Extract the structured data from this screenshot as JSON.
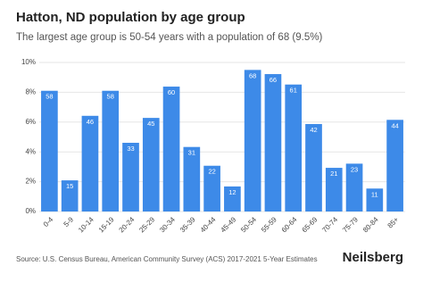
{
  "chart_data": {
    "type": "bar",
    "title": "Hatton, ND population by age group",
    "subtitle": "The largest age group is 50-54 years with a population of 68 (9.5%)",
    "categories": [
      "0-4",
      "5-9",
      "10-14",
      "15-19",
      "20-24",
      "25-29",
      "30-34",
      "35-39",
      "40-44",
      "45-49",
      "50-54",
      "55-59",
      "60-64",
      "65-69",
      "70-74",
      "75-79",
      "80-84",
      "85+"
    ],
    "values": [
      8.1,
      2.09,
      6.42,
      8.1,
      4.61,
      6.28,
      8.38,
      4.33,
      3.07,
      1.68,
      9.5,
      9.22,
      8.52,
      5.87,
      2.93,
      3.21,
      1.54,
      6.15
    ],
    "counts": [
      58,
      15,
      46,
      58,
      33,
      45,
      60,
      31,
      22,
      12,
      68,
      66,
      61,
      42,
      21,
      23,
      11,
      44
    ],
    "color": "#3d8ae8",
    "ylim": [
      0,
      10
    ],
    "yticks": [
      {
        "value": 0,
        "label": "0%"
      },
      {
        "value": 2,
        "label": "2%"
      },
      {
        "value": 4,
        "label": "4%"
      },
      {
        "value": 6,
        "label": "6%"
      },
      {
        "value": 8,
        "label": "8%"
      },
      {
        "value": 10,
        "label": "10%"
      }
    ],
    "grid": true,
    "source": "Source: U.S. Census Bureau, American Community Survey (ACS) 2017-2021 5-Year Estimates",
    "brand": "Neilsberg"
  }
}
